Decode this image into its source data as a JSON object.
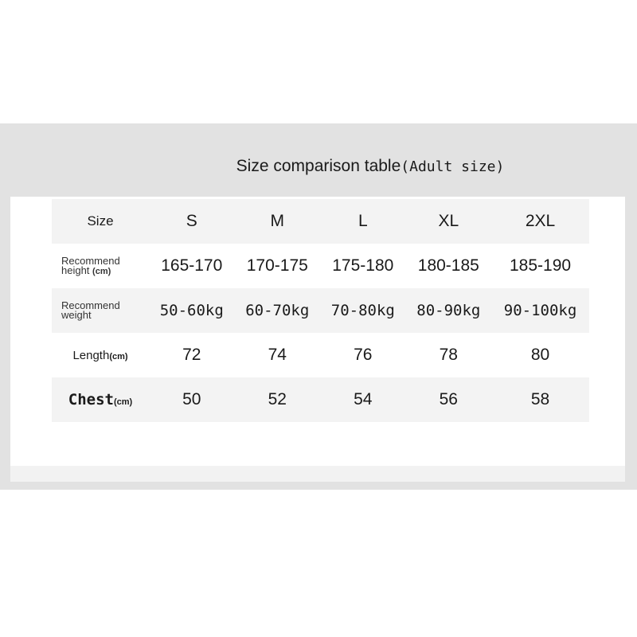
{
  "title": "Size comparison table",
  "title_sub": "(Adult size)",
  "table": {
    "header": {
      "label": "Size",
      "sizes": [
        "S",
        "M",
        "L",
        "XL",
        "2XL"
      ]
    },
    "rows": [
      {
        "label": "Recommend",
        "label2": "height",
        "unit": "(cm)",
        "values": [
          "165-170",
          "170-175",
          "175-180",
          "180-185",
          "185-190"
        ]
      },
      {
        "label": "Recommend",
        "label2": "weight",
        "unit": "",
        "values": [
          "50-60kg",
          "60-70kg",
          "70-80kg",
          "80-90kg",
          "90-100kg"
        ]
      },
      {
        "label": "Length",
        "unit": "(cm)",
        "values": [
          "72",
          "74",
          "76",
          "78",
          "80"
        ]
      },
      {
        "label": "Chest",
        "unit": "(cm)",
        "values": [
          "50",
          "52",
          "54",
          "56",
          "58"
        ]
      }
    ]
  }
}
